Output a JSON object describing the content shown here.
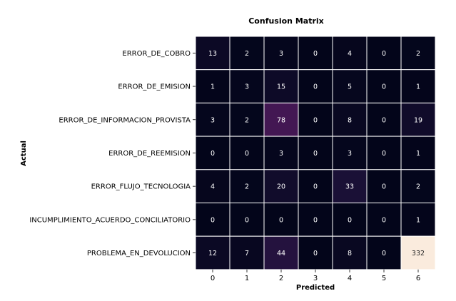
{
  "chart_data": {
    "type": "heatmap",
    "title": "Confusion Matrix",
    "xlabel": "Predicted",
    "ylabel": "Actual",
    "x_categories": [
      "0",
      "1",
      "2",
      "3",
      "4",
      "5",
      "6"
    ],
    "y_categories": [
      "ERROR_DE_COBRO",
      "ERROR_DE_EMISION",
      "ERROR_DE_INFORMACION_PROVISTA",
      "ERROR_DE_REEMISION",
      "ERROR_FLUJO_TECNOLOGIA",
      "INCUMPLIMIENTO_ACUERDO_CONCILIATORIO",
      "PROBLEMA_EN_DEVOLUCION"
    ],
    "values": [
      [
        13,
        2,
        3,
        0,
        4,
        0,
        2
      ],
      [
        1,
        3,
        15,
        0,
        5,
        0,
        1
      ],
      [
        3,
        2,
        78,
        0,
        8,
        0,
        19
      ],
      [
        0,
        0,
        3,
        0,
        3,
        0,
        1
      ],
      [
        4,
        2,
        20,
        0,
        33,
        0,
        2
      ],
      [
        0,
        0,
        0,
        0,
        0,
        0,
        1
      ],
      [
        12,
        7,
        44,
        0,
        8,
        0,
        332
      ]
    ],
    "color_range": [
      0,
      332
    ],
    "annotations": true,
    "colors": {
      "low": "#03051a",
      "high": "#faebdd",
      "gridline": "#ffffff"
    }
  }
}
